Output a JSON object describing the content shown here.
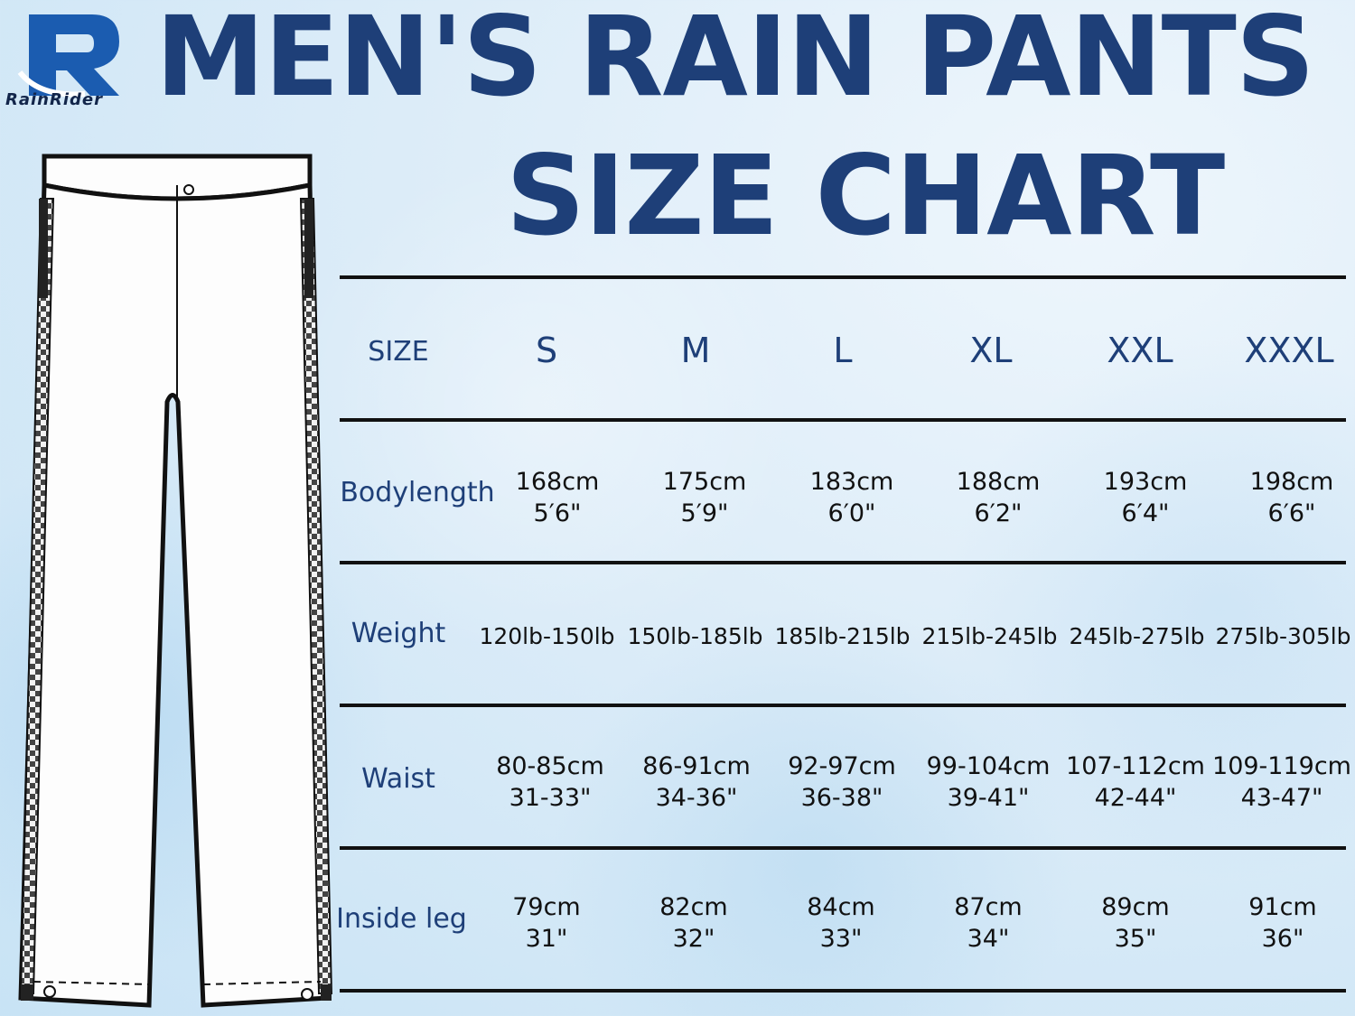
{
  "brand": {
    "logo_letter": "R",
    "name": "RainRider"
  },
  "title": {
    "line1": "MEN'S RAIN PANTS",
    "line2": "SIZE CHART"
  },
  "table": {
    "header": {
      "label": "SIZE",
      "sizes": [
        "S",
        "M",
        "L",
        "XL",
        "XXL",
        "XXXL"
      ]
    },
    "rows": [
      {
        "label": "Bodylength",
        "values": [
          [
            "168cm",
            "5′6\""
          ],
          [
            "175cm",
            "5′9\""
          ],
          [
            "183cm",
            "6′0\""
          ],
          [
            "188cm",
            "6′2\""
          ],
          [
            "193cm",
            "6′4\""
          ],
          [
            "198cm",
            "6′6\""
          ]
        ]
      },
      {
        "label": "Weight",
        "values": [
          [
            "120lb-150lb"
          ],
          [
            "150lb-185lb"
          ],
          [
            "185lb-215lb"
          ],
          [
            "215lb-245lb"
          ],
          [
            "245lb-275lb"
          ],
          [
            "275lb-305lb"
          ]
        ]
      },
      {
        "label": "Waist",
        "values": [
          [
            "80-85cm",
            "31-33\""
          ],
          [
            "86-91cm",
            "34-36\""
          ],
          [
            "92-97cm",
            "36-38\""
          ],
          [
            "99-104cm",
            "39-41\""
          ],
          [
            "107-112cm",
            "42-44\""
          ],
          [
            "109-119cm",
            "43-47\""
          ]
        ]
      },
      {
        "label": "Inside leg",
        "values": [
          [
            "79cm",
            "31\""
          ],
          [
            "82cm",
            "32\""
          ],
          [
            "84cm",
            "33\""
          ],
          [
            "87cm",
            "34\""
          ],
          [
            "89cm",
            "35\""
          ],
          [
            "91cm",
            "36\""
          ]
        ]
      }
    ]
  },
  "colors": {
    "title": "#1e3f78",
    "background": "#dcecf8",
    "logo_blue": "#1b5cb0"
  }
}
